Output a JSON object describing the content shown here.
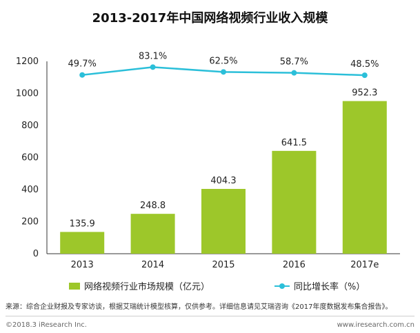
{
  "title": "2013-2017年中国网络视频行业收入规模",
  "source": "来源：综合企业财报及专家访谈，根据艾瑞统计模型核算，仅供参考。详细信息请见艾瑞咨询《2017年度数据发布集合报告》。",
  "footer": {
    "copyright": "©2018.3 iResearch Inc.",
    "website": "www.iresearch.com.cn"
  },
  "colors": {
    "bar": "#9dc72a",
    "line": "#2bbfd9"
  },
  "chart_data": {
    "type": "bar",
    "categories": [
      "2013",
      "2014",
      "2015",
      "2016",
      "2017e"
    ],
    "series": [
      {
        "name": "网络视频行业市场规模（亿元）",
        "type": "bar",
        "values": [
          135.9,
          248.8,
          404.3,
          641.5,
          952.3
        ],
        "labels": [
          "135.9",
          "248.8",
          "404.3",
          "641.5",
          "952.3"
        ]
      },
      {
        "name": "同比增长率（%）",
        "type": "line",
        "values": [
          49.7,
          83.1,
          62.5,
          58.7,
          48.5
        ],
        "labels": [
          "49.7%",
          "83.1%",
          "62.5%",
          "58.7%",
          "48.5%"
        ]
      }
    ],
    "yticks": [
      "0",
      "200",
      "400",
      "600",
      "800",
      "1000",
      "1200"
    ],
    "ylim": [
      0,
      1200
    ],
    "legend_position": "bottom"
  }
}
